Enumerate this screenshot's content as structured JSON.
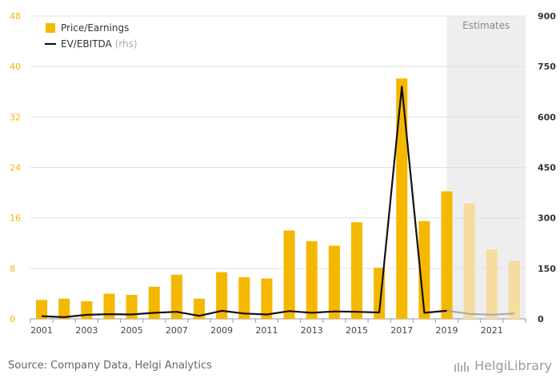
{
  "chart_data": {
    "type": "bar+line",
    "x": [
      2001,
      2002,
      2003,
      2004,
      2005,
      2006,
      2007,
      2008,
      2009,
      2010,
      2011,
      2012,
      2013,
      2014,
      2015,
      2016,
      2017,
      2018,
      2019,
      2020,
      2021,
      2022
    ],
    "x_tick_labels": [
      "2001",
      "2003",
      "2005",
      "2007",
      "2009",
      "2011",
      "2013",
      "2015",
      "2017",
      "2019",
      "2021"
    ],
    "series": [
      {
        "name": "Price/Earnings",
        "kind": "bar",
        "axis": "left",
        "color": "#f5b800",
        "estimate_color": "#f7dca0",
        "values": [
          3.0,
          3.2,
          2.8,
          4.0,
          3.8,
          5.1,
          7.0,
          3.2,
          7.4,
          6.6,
          6.4,
          14.0,
          12.3,
          11.6,
          15.3,
          8.1,
          38.1,
          15.5,
          20.2,
          18.3,
          11.0,
          9.2
        ]
      },
      {
        "name": "EV/EBITDA",
        "name_suffix": "(rhs)",
        "kind": "line",
        "axis": "right",
        "color": "#111111",
        "estimate_color": "#aaaaaa",
        "values": [
          8,
          5,
          12,
          14,
          13,
          18,
          21,
          9,
          24,
          16,
          13,
          23,
          18,
          22,
          21,
          19,
          690,
          18,
          24,
          15,
          12,
          16
        ]
      }
    ],
    "estimates_from": 2019,
    "estimate_bars_from": 2020,
    "estimates_label": "Estimates",
    "y_left": {
      "ticks": [
        0,
        8,
        16,
        24,
        32,
        40,
        48
      ],
      "ylim": [
        0,
        48
      ],
      "color": "#f5b800"
    },
    "y_right": {
      "ticks": [
        0,
        150,
        300,
        450,
        600,
        750,
        900
      ],
      "ylim": [
        0,
        900
      ],
      "color": "#333333"
    },
    "grid": true,
    "legend_position": "top-left"
  },
  "footer": {
    "source": "Source: Company Data, Helgi Analytics",
    "brand": "HelgiLibrary"
  }
}
